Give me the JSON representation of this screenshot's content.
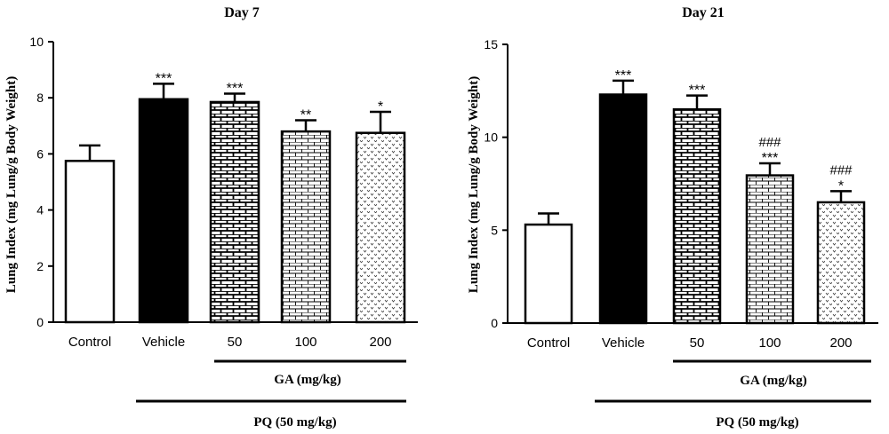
{
  "chart_data": [
    {
      "type": "bar",
      "title": "Day 7",
      "ylabel": "Lung Index (mg Lung/g Body Weight)",
      "ylim": [
        0,
        10
      ],
      "yticks": [
        0,
        2,
        4,
        6,
        8,
        10
      ],
      "categories": [
        "Control",
        "Vehicle",
        "50",
        "100",
        "200"
      ],
      "values": [
        5.75,
        7.95,
        7.85,
        6.8,
        6.75
      ],
      "errors": [
        0.55,
        0.55,
        0.3,
        0.4,
        0.75
      ],
      "annotations": [
        "",
        "***",
        "***",
        "**",
        "*"
      ],
      "annotations_top": [
        "",
        "",
        "",
        "",
        ""
      ],
      "patterns": [
        "white",
        "black",
        "brick-dense",
        "brick-light",
        "chevron"
      ],
      "ga_label": "GA (mg/kg)",
      "pq_label": "PQ (50 mg/kg)"
    },
    {
      "type": "bar",
      "title": "Day 21",
      "ylabel": "Lung Index (mg Lung/g Body Weight)",
      "ylim": [
        0,
        15
      ],
      "yticks": [
        0,
        5,
        10,
        15
      ],
      "categories": [
        "Control",
        "Vehicle",
        "50",
        "100",
        "200"
      ],
      "values": [
        5.3,
        12.3,
        11.5,
        7.95,
        6.5
      ],
      "errors": [
        0.6,
        0.75,
        0.75,
        0.65,
        0.6
      ],
      "annotations": [
        "",
        "***",
        "***",
        "***",
        "*"
      ],
      "annotations_top": [
        "",
        "",
        "",
        "###",
        "###"
      ],
      "patterns": [
        "white",
        "black",
        "brick-dense",
        "brick-light",
        "chevron"
      ],
      "ga_label": "GA (mg/kg)",
      "pq_label": "PQ (50 mg/kg)"
    }
  ]
}
